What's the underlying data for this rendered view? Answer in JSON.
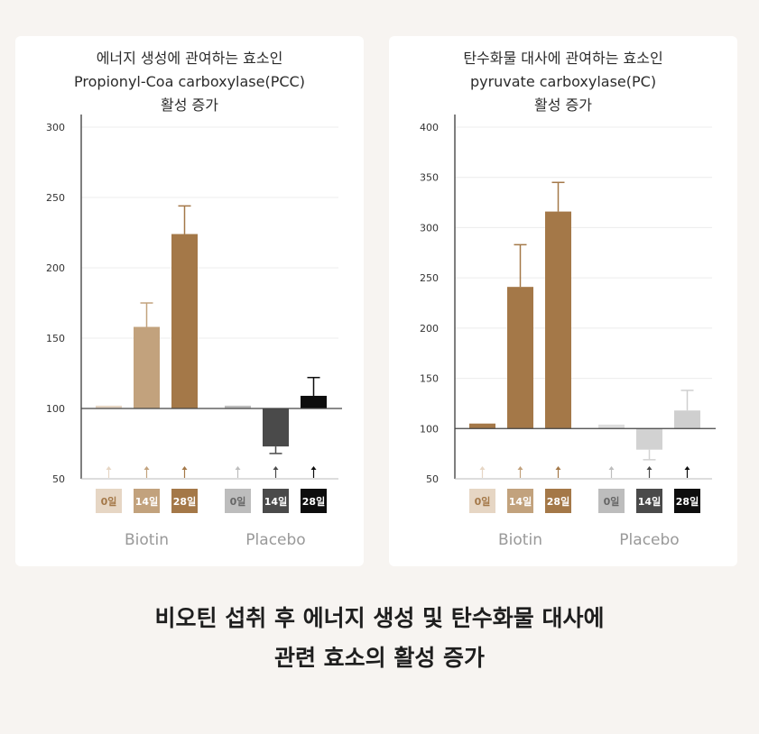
{
  "chart_data": [
    {
      "type": "bar",
      "title_lines": [
        "에너지 생성에 관여하는 효소인",
        "Propionyl-Coa carboxylase(PCC)",
        "활성 증가"
      ],
      "ylim": [
        50,
        300
      ],
      "yticks": [
        50,
        100,
        150,
        200,
        250,
        300
      ],
      "baseline": 100,
      "categories": [
        "0일",
        "14일",
        "28일",
        "0일",
        "14일",
        "28일"
      ],
      "groups": [
        "Biotin",
        "Placebo"
      ],
      "values": [
        102,
        158,
        224,
        102,
        73,
        109
      ],
      "error_high": [
        null,
        175,
        244,
        null,
        68,
        122
      ],
      "colors": [
        "#e6d6c4",
        "#c2a27d",
        "#a47848",
        "#bdbdbd",
        "#4a4a4a",
        "#0d0d0d"
      ],
      "grid": true
    },
    {
      "type": "bar",
      "title_lines": [
        "탄수화물 대사에 관여하는 효소인",
        "pyruvate carboxylase(PC)",
        "활성 증가"
      ],
      "ylim": [
        50,
        400
      ],
      "yticks": [
        50,
        100,
        150,
        200,
        250,
        300,
        350,
        400
      ],
      "baseline": 100,
      "categories": [
        "0일",
        "14일",
        "28일",
        "0일",
        "14일",
        "28일"
      ],
      "groups": [
        "Biotin",
        "Placebo"
      ],
      "values": [
        105,
        241,
        316,
        104,
        79,
        118
      ],
      "error_high": [
        null,
        283,
        345,
        null,
        69,
        138
      ],
      "colors": [
        "#a47848",
        "#a47848",
        "#a47848",
        "#dedede",
        "#d2d2d2",
        "#cfcfcf"
      ],
      "label_colors": [
        "#e6d6c4",
        "#c2a27d",
        "#a47848",
        "#bdbdbd",
        "#4a4a4a",
        "#0d0d0d"
      ],
      "grid": true
    }
  ],
  "caption": {
    "line1": "비오틴 섭취 후 에너지 생성 및 탄수화물 대사에",
    "line2": "관련 효소의 활성 증가"
  }
}
